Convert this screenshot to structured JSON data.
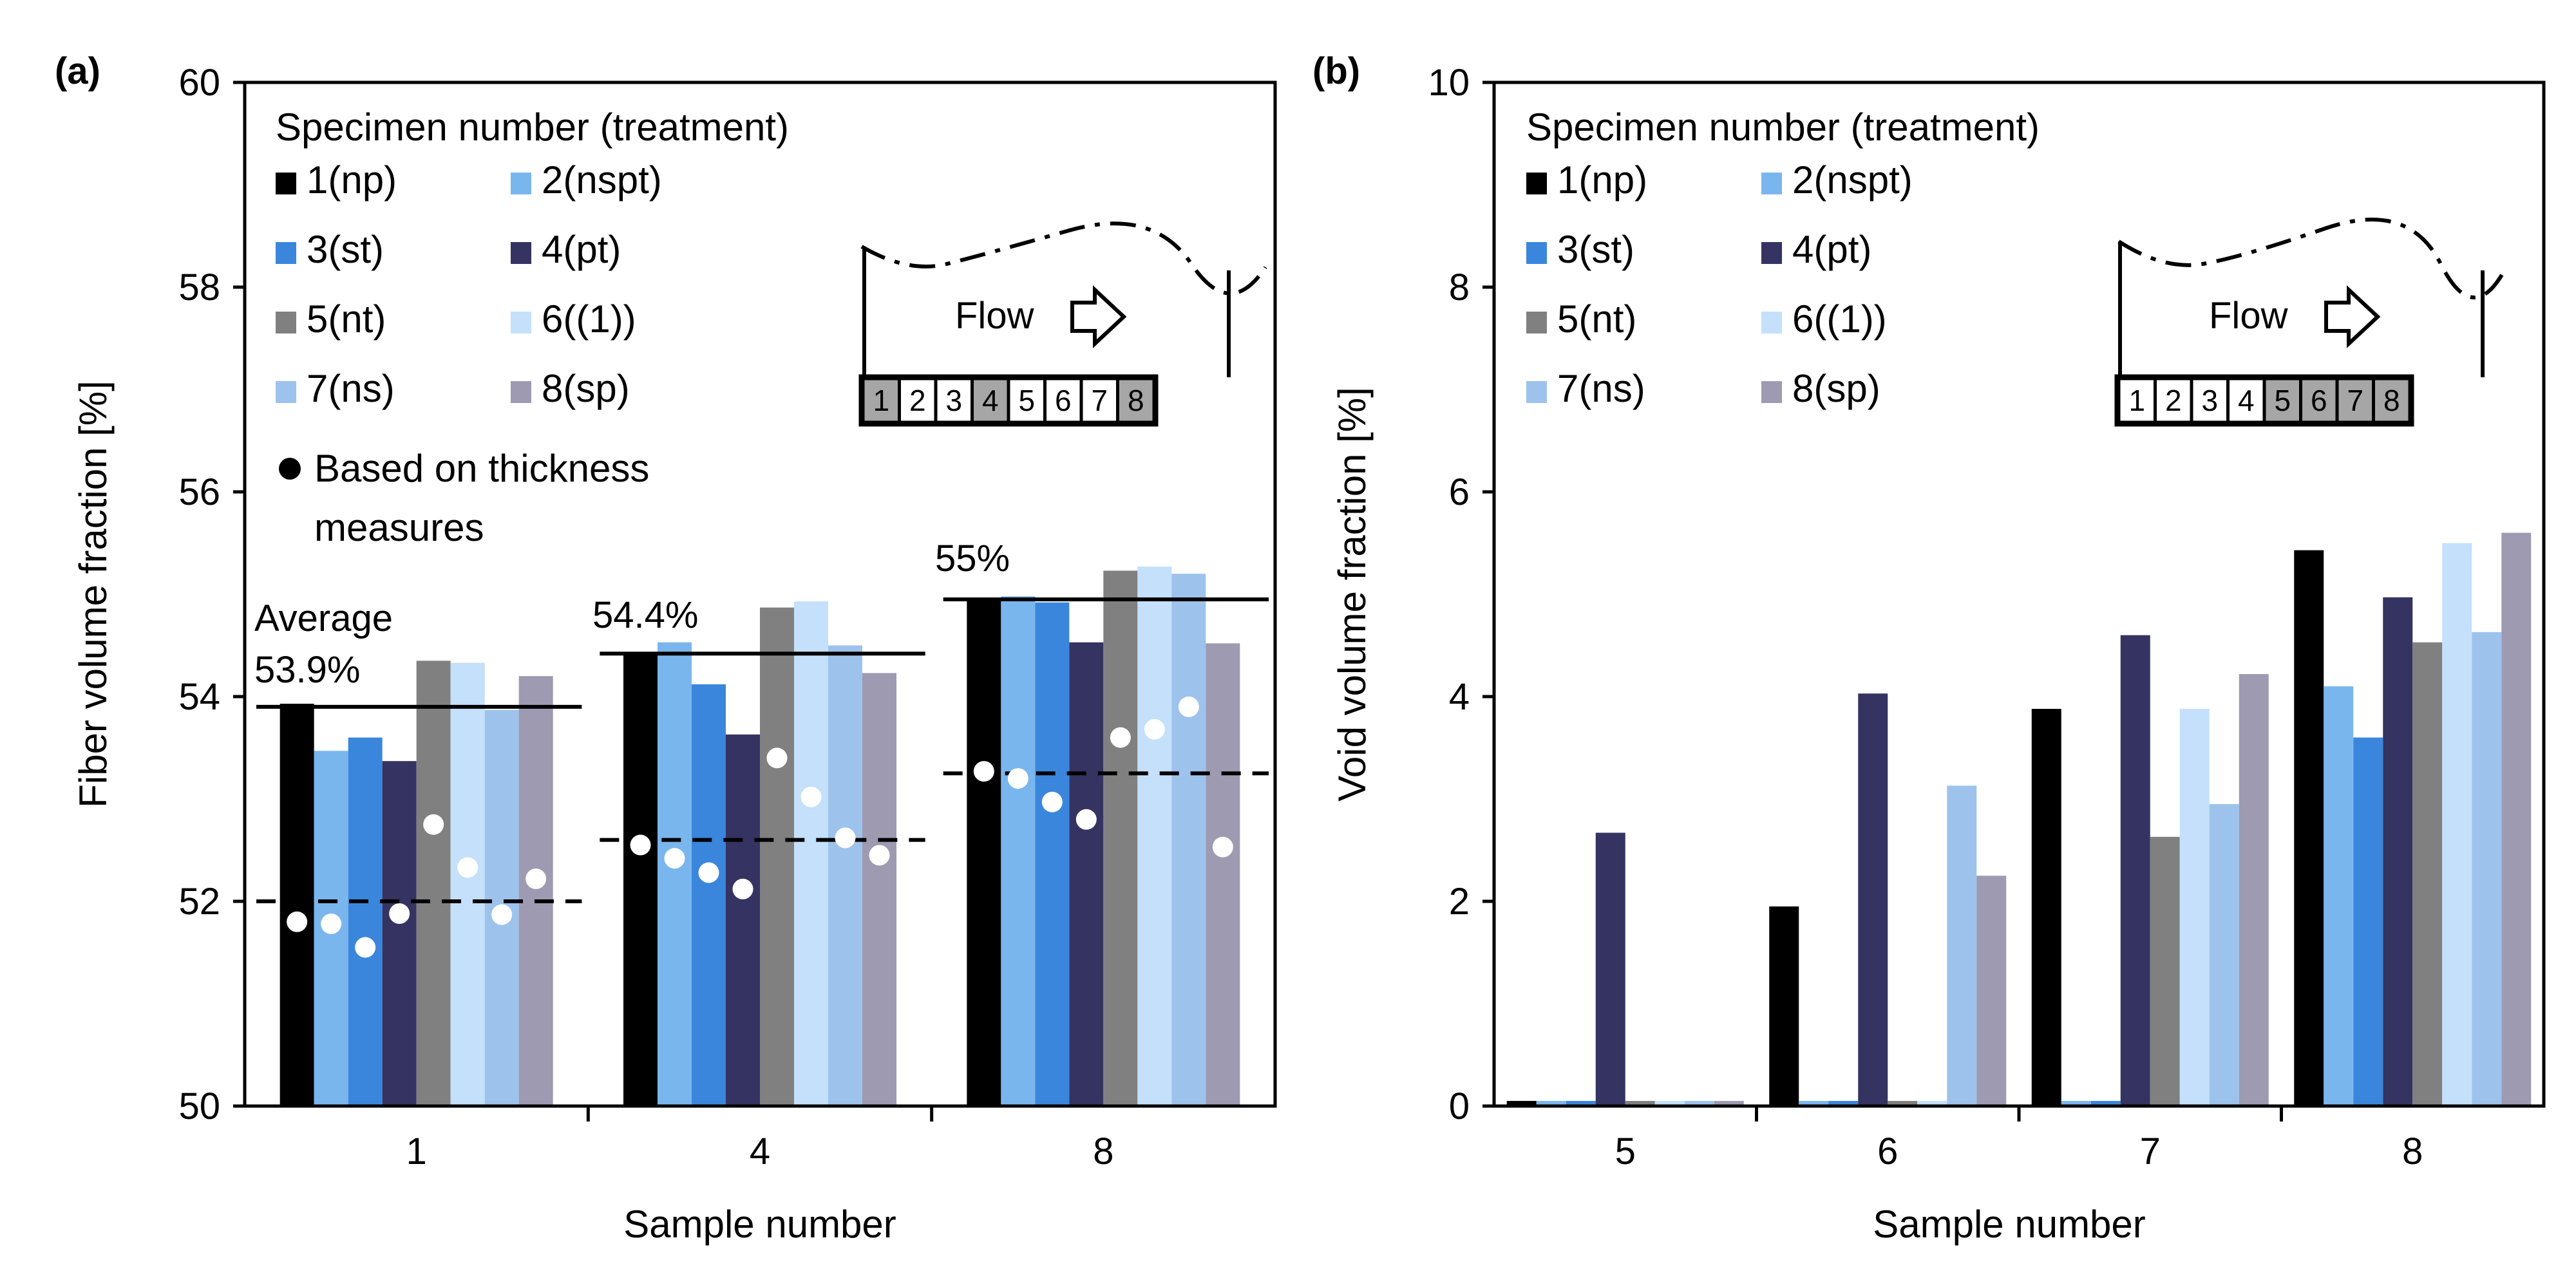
{
  "legend_title": "Specimen number (treatment)",
  "legend_entries": [
    {
      "label": "1(np)",
      "color": "#000000"
    },
    {
      "label": "2(nspt)",
      "color": "#7ab6ee"
    },
    {
      "label": "3(st)",
      "color": "#3a86dd"
    },
    {
      "label": "4(pt)",
      "color": "#353361"
    },
    {
      "label": "5(nt)",
      "color": "#808080"
    },
    {
      "label": "6((1))",
      "color": "#c4e0fa"
    },
    {
      "label": "7(ns)",
      "color": "#9dc3ec"
    },
    {
      "label": "8(sp)",
      "color": "#9e9ab2"
    }
  ],
  "dot_legend_line1": "Based on thickness",
  "dot_legend_line2": "measures",
  "flow_label": "Flow",
  "chart_data": [
    {
      "panel": "(a)",
      "type": "bar",
      "xlabel": "Sample number",
      "ylabel": "Fiber volume fraction [%]",
      "ylim": [
        50,
        60
      ],
      "yticks": [
        50,
        52,
        54,
        56,
        58,
        60
      ],
      "categories": [
        "1",
        "4",
        "8"
      ],
      "series": [
        {
          "name": "1(np)",
          "values": [
            53.93,
            54.42,
            54.95
          ]
        },
        {
          "name": "2(nspt)",
          "values": [
            53.47,
            54.53,
            54.98
          ]
        },
        {
          "name": "3(st)",
          "values": [
            53.6,
            54.12,
            54.92
          ]
        },
        {
          "name": "4(pt)",
          "values": [
            53.37,
            53.63,
            54.53
          ]
        },
        {
          "name": "5(nt)",
          "values": [
            54.35,
            54.87,
            55.23
          ]
        },
        {
          "name": "6((1))",
          "values": [
            54.33,
            54.93,
            55.27
          ]
        },
        {
          "name": "7(ns)",
          "values": [
            53.87,
            54.5,
            55.2
          ]
        },
        {
          "name": "8(sp)",
          "values": [
            54.2,
            54.23,
            54.52
          ]
        }
      ],
      "thickness_points": [
        [
          51.8,
          51.78,
          51.55,
          51.88,
          52.75,
          52.33,
          51.87,
          52.22
        ],
        [
          52.55,
          52.42,
          52.28,
          52.12,
          53.4,
          53.02,
          52.62,
          52.45
        ],
        [
          53.27,
          53.2,
          52.97,
          52.8,
          53.6,
          53.68,
          53.9,
          52.53
        ]
      ],
      "averages": [
        53.9,
        54.42,
        54.95
      ],
      "thickness_averages": [
        52.0,
        52.6,
        53.25
      ],
      "annotations": [
        "Average",
        "53.9%",
        "54.4%",
        "55%"
      ],
      "inset_cells": [
        "1",
        "2",
        "3",
        "4",
        "5",
        "6",
        "7",
        "8"
      ],
      "inset_highlighted": [
        "1",
        "4",
        "8"
      ]
    },
    {
      "panel": "(b)",
      "type": "bar",
      "xlabel": "Sample number",
      "ylabel": "Void volume fraction [%]",
      "ylim": [
        0,
        10
      ],
      "yticks": [
        0,
        2,
        4,
        6,
        8,
        10
      ],
      "categories": [
        "5",
        "6",
        "7",
        "8"
      ],
      "series": [
        {
          "name": "1(np)",
          "values": [
            0.05,
            1.95,
            3.88,
            5.43
          ]
        },
        {
          "name": "2(nspt)",
          "values": [
            0.05,
            0.05,
            0.05,
            4.1
          ]
        },
        {
          "name": "3(st)",
          "values": [
            0.05,
            0.05,
            0.05,
            3.6
          ]
        },
        {
          "name": "4(pt)",
          "values": [
            2.67,
            4.03,
            4.6,
            4.97
          ]
        },
        {
          "name": "5(nt)",
          "values": [
            0.05,
            0.05,
            2.63,
            4.53
          ]
        },
        {
          "name": "6((1))",
          "values": [
            0.05,
            0.05,
            3.88,
            5.5
          ]
        },
        {
          "name": "7(ns)",
          "values": [
            0.05,
            3.13,
            2.95,
            4.63
          ]
        },
        {
          "name": "8(sp)",
          "values": [
            0.05,
            2.25,
            4.22,
            5.6
          ]
        }
      ],
      "inset_cells": [
        "1",
        "2",
        "3",
        "4",
        "5",
        "6",
        "7",
        "8"
      ],
      "inset_highlighted": [
        "5",
        "6",
        "7",
        "8"
      ]
    }
  ]
}
